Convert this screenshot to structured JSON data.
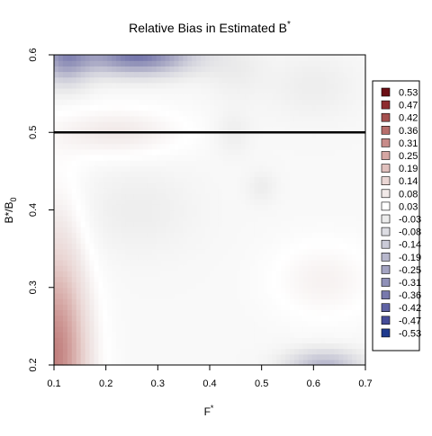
{
  "chart_data": {
    "type": "heatmap",
    "title": "Relative Bias in Estimated B",
    "title_superscript": "*",
    "xlabel": "F",
    "xlabel_superscript": "*",
    "ylabel": "B*/B",
    "ylabel_subscript": "0",
    "xlim": [
      0.1,
      0.7
    ],
    "ylim": [
      0.2,
      0.6
    ],
    "x_ticks": [
      {
        "value": 0.1,
        "label": "0.1"
      },
      {
        "value": 0.2,
        "label": "0.2"
      },
      {
        "value": 0.3,
        "label": "0.3"
      },
      {
        "value": 0.4,
        "label": "0.4"
      },
      {
        "value": 0.5,
        "label": "0.5"
      },
      {
        "value": 0.6,
        "label": "0.6"
      },
      {
        "value": 0.7,
        "label": "0.7"
      }
    ],
    "y_ticks": [
      {
        "value": 0.2,
        "label": "0.2"
      },
      {
        "value": 0.3,
        "label": "0.3"
      },
      {
        "value": 0.4,
        "label": "0.4"
      },
      {
        "value": 0.5,
        "label": "0.5"
      },
      {
        "value": 0.6,
        "label": "0.6"
      }
    ],
    "reference_line_y": 0.5,
    "legend_placement": "right",
    "legend": [
      {
        "label": "0.53",
        "color": "#6b0f15"
      },
      {
        "label": "0.47",
        "color": "#8e2c2f"
      },
      {
        "label": "0.42",
        "color": "#a5504f"
      },
      {
        "label": "0.36",
        "color": "#b76e6c"
      },
      {
        "label": "0.31",
        "color": "#c78b89"
      },
      {
        "label": "0.25",
        "color": "#d5a6a3"
      },
      {
        "label": "0.19",
        "color": "#e0c0bd"
      },
      {
        "label": "0.14",
        "color": "#ead6d4"
      },
      {
        "label": "0.08",
        "color": "#f1e9e8"
      },
      {
        "label": "0.03",
        "color": "#ffffff"
      },
      {
        "label": "-0.03",
        "color": "#ececec"
      },
      {
        "label": "-0.08",
        "color": "#dddde3"
      },
      {
        "label": "-0.14",
        "color": "#cbcbd8"
      },
      {
        "label": "-0.19",
        "color": "#b8b8cd"
      },
      {
        "label": "-0.25",
        "color": "#a4a4c2"
      },
      {
        "label": "-0.31",
        "color": "#8f90b8"
      },
      {
        "label": "-0.36",
        "color": "#7879ad"
      },
      {
        "label": "-0.42",
        "color": "#5f62a3"
      },
      {
        "label": "-0.47",
        "color": "#464c98"
      },
      {
        "label": "-0.53",
        "color": "#1f3a8e"
      }
    ],
    "surface_features": [
      {
        "x": 0.1,
        "y": 0.2,
        "sx": 0.045,
        "sy": 0.075,
        "value": 0.26
      },
      {
        "x": 0.11,
        "y": 0.3,
        "sx": 0.035,
        "sy": 0.09,
        "value": 0.1
      },
      {
        "x": 0.22,
        "y": 0.5,
        "sx": 0.09,
        "sy": 0.022,
        "value": 0.07
      },
      {
        "x": 0.26,
        "y": 0.6,
        "sx": 0.075,
        "sy": 0.017,
        "value": -0.38
      },
      {
        "x": 0.12,
        "y": 0.6,
        "sx": 0.035,
        "sy": 0.025,
        "value": -0.28
      },
      {
        "x": 0.62,
        "y": 0.31,
        "sx": 0.07,
        "sy": 0.035,
        "value": 0.05
      },
      {
        "x": 0.62,
        "y": 0.2,
        "sx": 0.05,
        "sy": 0.014,
        "value": -0.2
      },
      {
        "x": 0.26,
        "y": 0.4,
        "sx": 0.08,
        "sy": 0.04,
        "value": -0.035
      },
      {
        "x": 0.45,
        "y": 0.58,
        "sx": 0.04,
        "sy": 0.025,
        "value": -0.035
      },
      {
        "x": 0.6,
        "y": 0.56,
        "sx": 0.06,
        "sy": 0.03,
        "value": -0.035
      },
      {
        "x": 0.445,
        "y": 0.5,
        "sx": 0.025,
        "sy": 0.02,
        "value": -0.035
      },
      {
        "x": 0.5,
        "y": 0.43,
        "sx": 0.02,
        "sy": 0.015,
        "value": -0.035
      }
    ]
  }
}
